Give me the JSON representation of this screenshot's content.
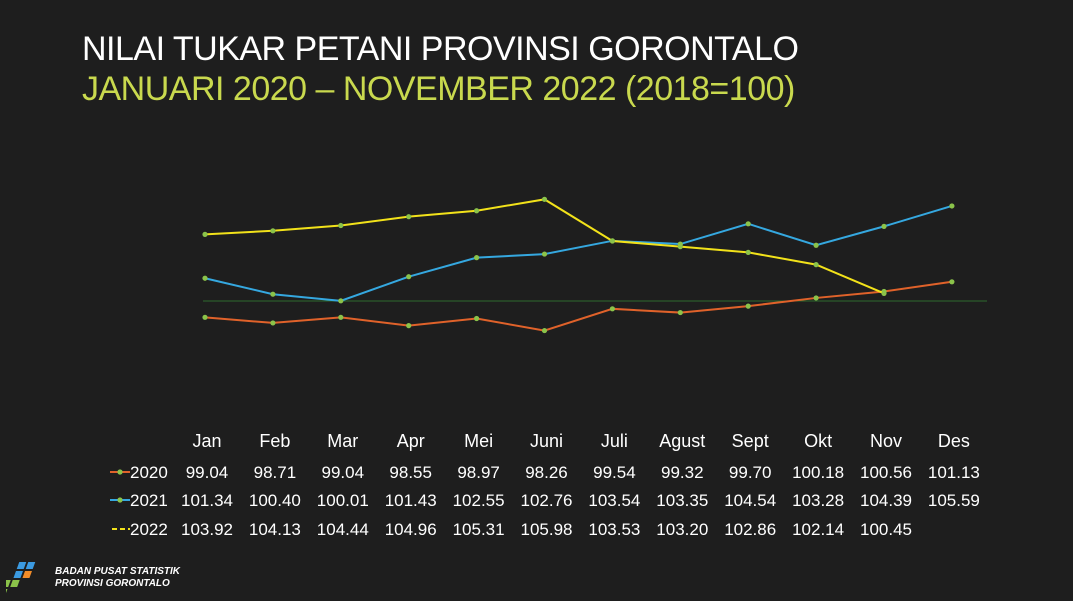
{
  "title": "NILAI TUKAR PETANI PROVINSI GORONTALO",
  "subtitle": "JANUARI 2020 – NOVEMBER 2022 (2018=100)",
  "footer": {
    "org_line1": "BADAN PUSAT STATISTIK",
    "org_line2": "PROVINSI GORONTALO",
    "logo_icon": "bps-logo-icon"
  },
  "colors": {
    "background": "#1e1e1e",
    "title": "#ffffff",
    "subtitle": "#c9d94e",
    "marker": "#8bc34a",
    "baseline": "#2e6b2e"
  },
  "chart_data": {
    "type": "line",
    "categories": [
      "Jan",
      "Feb",
      "Mar",
      "Apr",
      "Mei",
      "Juni",
      "Juli",
      "Agust",
      "Sept",
      "Okt",
      "Nov",
      "Des"
    ],
    "reference_line": 100,
    "series": [
      {
        "name": "2020",
        "color": "#e0622a",
        "values": [
          99.04,
          98.71,
          99.04,
          98.55,
          98.97,
          98.26,
          99.54,
          99.32,
          99.7,
          100.18,
          100.56,
          101.13
        ],
        "labels": [
          "99.04",
          "98.71",
          "99.04",
          "98.55",
          "98.97",
          "98.26",
          "99.54",
          "99.32",
          "99.70",
          "100.18",
          "100.56",
          "101.13"
        ]
      },
      {
        "name": "2021",
        "color": "#35a8e0",
        "values": [
          101.34,
          100.4,
          100.01,
          101.43,
          102.55,
          102.76,
          103.54,
          103.35,
          104.54,
          103.28,
          104.39,
          105.59
        ],
        "labels": [
          "101.34",
          "100.40",
          "100.01",
          "101.43",
          "102.55",
          "102.76",
          "103.54",
          "103.35",
          "104.54",
          "103.28",
          "104.39",
          "105.59"
        ]
      },
      {
        "name": "2022",
        "color": "#f2e21a",
        "dashed_legend": true,
        "values": [
          103.92,
          104.13,
          104.44,
          104.96,
          105.31,
          105.98,
          103.53,
          103.2,
          102.86,
          102.14,
          100.45,
          null
        ],
        "labels": [
          "103.92",
          "104.13",
          "104.44",
          "104.96",
          "105.31",
          "105.98",
          "103.53",
          "103.20",
          "102.86",
          "102.14",
          "100.45",
          ""
        ]
      }
    ]
  }
}
